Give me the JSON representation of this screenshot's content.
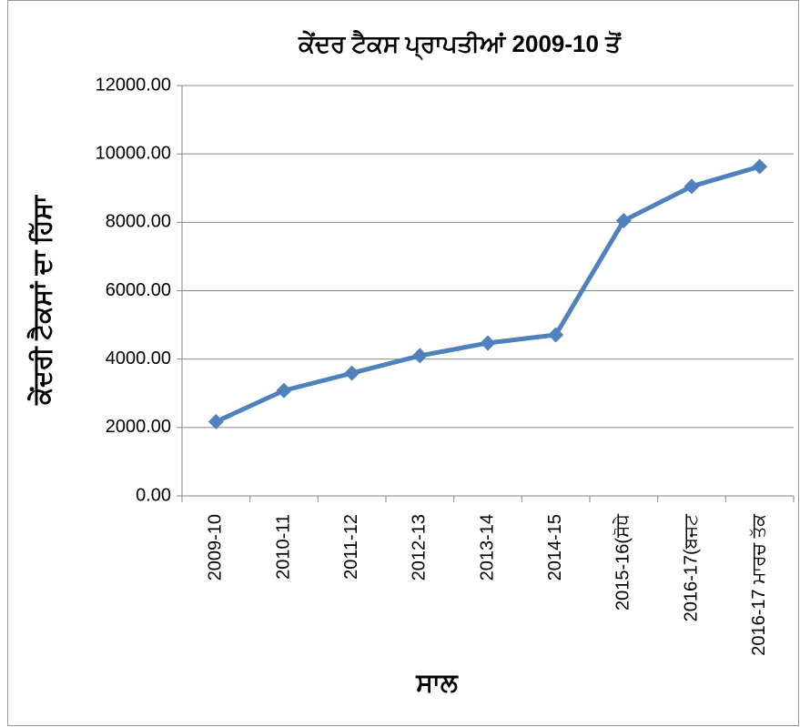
{
  "chart_data": {
    "type": "line",
    "title": "ਕੇਂਦਰ ਟੈਕਸ ਪ੍ਰਾਪਤੀਆਂ 2009-10 ਤੋਂ",
    "y_label": "ਕੇਂਦਰੀ ਟੈਕਸਾਂ ਦਾ ਹਿੱਸਾ",
    "x_label": "ਸਾਲ",
    "categories": [
      "2009-10",
      "2010-11",
      "2011-12",
      "2012-13",
      "2013-14",
      "2014-15",
      "2015-16(ਸੋਧੇ",
      "2016-17(ਬਜਟ",
      "2016-17 ਮਾਰਚ ਤੱਕ"
    ],
    "series": [
      {
        "name": "ਕੇਂਦਰੀ ਟੈਕਸਾਂ ਦਾ ਹਿੱਸਾ",
        "color": "#4f81bd",
        "values": [
          2170,
          3080,
          3590,
          4100,
          4470,
          4710,
          8050,
          9050,
          9630
        ]
      }
    ],
    "ylim": [
      0,
      12000
    ],
    "yticks": [
      {
        "value": 0,
        "label": "0.00"
      },
      {
        "value": 2000,
        "label": "2000.00"
      },
      {
        "value": 4000,
        "label": "4000.00"
      },
      {
        "value": 6000,
        "label": "6000.00"
      },
      {
        "value": 8000,
        "label": "8000.00"
      },
      {
        "value": 10000,
        "label": "10000.00"
      },
      {
        "value": 12000,
        "label": "12000.00"
      }
    ],
    "grid": true
  }
}
